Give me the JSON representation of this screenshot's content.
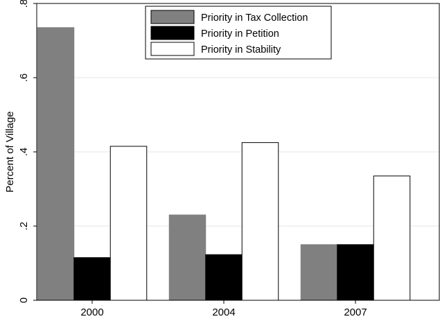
{
  "chart_data": {
    "type": "bar",
    "title": "",
    "xlabel": "",
    "ylabel": "Percent of Village",
    "categories": [
      "2000",
      "2004",
      "2007"
    ],
    "series": [
      {
        "name": "Priority in Tax Collection",
        "values": [
          0.735,
          0.23,
          0.15
        ],
        "color": "#808080"
      },
      {
        "name": "Priority in Petition",
        "values": [
          0.115,
          0.123,
          0.15
        ],
        "color": "#000000"
      },
      {
        "name": "Priority in Stability",
        "values": [
          0.415,
          0.425,
          0.335
        ],
        "color": "#ffffff"
      }
    ],
    "ylim": [
      0,
      0.8
    ],
    "yticks": [
      {
        "value": 0,
        "label": "0"
      },
      {
        "value": 0.2,
        "label": ".2"
      },
      {
        "value": 0.4,
        "label": ".4"
      },
      {
        "value": 0.6,
        "label": ".6"
      },
      {
        "value": 0.8,
        "label": ".8"
      }
    ],
    "grid": true,
    "legend_position": "top-right"
  }
}
